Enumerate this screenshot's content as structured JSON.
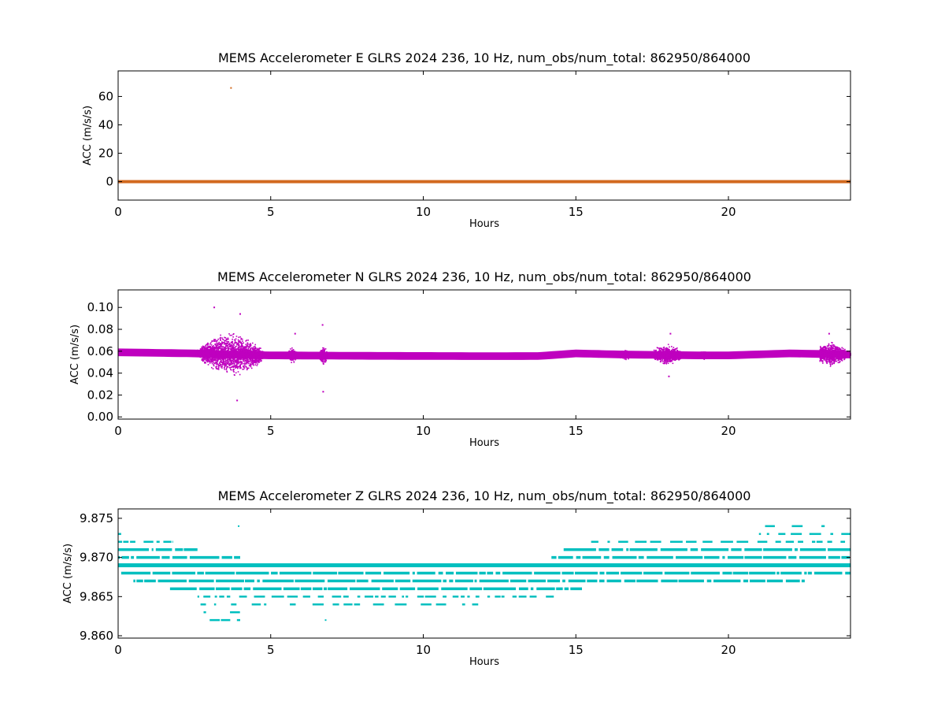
{
  "colors": {
    "E": "#d2691e",
    "N": "#bf00bf",
    "Z": "#00bfbf",
    "axes": "#000000",
    "background": "#ffffff"
  },
  "chart_data": [
    {
      "type": "scatter",
      "title": "MEMS Accelerometer E GLRS 2024 236, 10 Hz, num_obs/num_total: 862950/864000",
      "xlabel": "Hours",
      "ylabel": "ACC (m/s/s)",
      "xlim": [
        0,
        24
      ],
      "ylim": [
        -13,
        78
      ],
      "xticks": [
        0,
        5,
        10,
        15,
        20
      ],
      "xtick_labels": [
        "0",
        "5",
        "10",
        "15",
        "20"
      ],
      "yticks": [
        0,
        20,
        40,
        60
      ],
      "ytick_labels": [
        "0",
        "20",
        "40",
        "60"
      ],
      "grid": false,
      "series": [
        {
          "baseline": 0.0,
          "baseline_range": [
            0,
            24
          ],
          "band": 0.8,
          "outliers": [
            {
              "x": 3.7,
              "y": 66
            }
          ]
        }
      ]
    },
    {
      "type": "scatter",
      "title": "MEMS Accelerometer N GLRS 2024 236, 10 Hz, num_obs/num_total: 862950/864000",
      "xlabel": "Hours",
      "ylabel": "ACC (m/s/s)",
      "xlim": [
        0,
        24
      ],
      "ylim": [
        -0.002,
        0.116
      ],
      "xticks": [
        0,
        5,
        10,
        15,
        20
      ],
      "xtick_labels": [
        "0",
        "5",
        "10",
        "15",
        "20"
      ],
      "yticks": [
        0.0,
        0.02,
        0.04,
        0.06,
        0.08,
        0.1
      ],
      "ytick_labels": [
        "0.00",
        "0.02",
        "0.04",
        "0.06",
        "0.08",
        "0.10"
      ],
      "grid": false,
      "series": [
        {
          "baseline": [
            [
              0,
              0.059
            ],
            [
              2.5,
              0.058
            ],
            [
              3.5,
              0.057
            ],
            [
              5,
              0.0562
            ],
            [
              8,
              0.0558
            ],
            [
              12,
              0.0555
            ],
            [
              13.8,
              0.0556
            ],
            [
              15,
              0.058
            ],
            [
              16.5,
              0.057
            ],
            [
              19,
              0.0562
            ],
            [
              20,
              0.0562
            ],
            [
              22,
              0.058
            ],
            [
              24,
              0.057
            ]
          ],
          "band": 0.0035,
          "bursts": [
            {
              "start": 2.55,
              "end": 4.9,
              "amp": 0.022,
              "peak": 3.7
            },
            {
              "start": 5.5,
              "end": 5.9,
              "amp": 0.008,
              "peak": 5.7
            },
            {
              "start": 6.55,
              "end": 6.9,
              "amp": 0.009,
              "peak": 6.72
            },
            {
              "start": 16.3,
              "end": 16.9,
              "amp": 0.005,
              "peak": 16.6
            },
            {
              "start": 17.5,
              "end": 18.6,
              "amp": 0.01,
              "peak": 18.0
            },
            {
              "start": 19.0,
              "end": 19.5,
              "amp": 0.004,
              "peak": 19.2
            },
            {
              "start": 23.0,
              "end": 24.0,
              "amp": 0.012,
              "peak": 23.3
            }
          ],
          "outliers": [
            {
              "x": 3.15,
              "y": 0.1
            },
            {
              "x": 4.0,
              "y": 0.094
            },
            {
              "x": 3.9,
              "y": 0.015
            },
            {
              "x": 6.7,
              "y": 0.084
            },
            {
              "x": 6.72,
              "y": 0.023
            },
            {
              "x": 5.8,
              "y": 0.076
            },
            {
              "x": 18.1,
              "y": 0.076
            },
            {
              "x": 18.05,
              "y": 0.037
            },
            {
              "x": 23.3,
              "y": 0.076
            }
          ]
        }
      ]
    },
    {
      "type": "scatter",
      "title": "MEMS Accelerometer Z GLRS 2024 236, 10 Hz, num_obs/num_total: 862950/864000",
      "xlabel": "Hours",
      "ylabel": "ACC (m/s/s)",
      "xlim": [
        0,
        24
      ],
      "ylim": [
        9.8597,
        9.8762
      ],
      "xticks": [
        0,
        5,
        10,
        15,
        20
      ],
      "xtick_labels": [
        "0",
        "5",
        "10",
        "15",
        "20"
      ],
      "yticks": [
        9.86,
        9.865,
        9.87,
        9.875
      ],
      "ytick_labels": [
        "9.860",
        "9.865",
        "9.870",
        "9.875"
      ],
      "grid": false,
      "levels": [
        {
          "y": 9.874,
          "segments": [
            [
              21.2,
              23.3
            ]
          ],
          "density": "sparse"
        },
        {
          "y": 9.873,
          "segments": [
            [
              0,
              0.1
            ],
            [
              21.0,
              24
            ]
          ],
          "density": "medium"
        },
        {
          "y": 9.872,
          "segments": [
            [
              0,
              1.8
            ],
            [
              15.5,
              24
            ]
          ],
          "density": "medium"
        },
        {
          "y": 9.871,
          "segments": [
            [
              0,
              2.6
            ],
            [
              14.6,
              24
            ]
          ],
          "density": "dense"
        },
        {
          "y": 9.87,
          "segments": [
            [
              0,
              4.0
            ],
            [
              14.2,
              24
            ]
          ],
          "density": "dense"
        },
        {
          "y": 9.869,
          "segments": [
            [
              0,
              24
            ]
          ],
          "density": "solid"
        },
        {
          "y": 9.868,
          "segments": [
            [
              0.1,
              24
            ]
          ],
          "density": "dense"
        },
        {
          "y": 9.867,
          "segments": [
            [
              0.5,
              22.5
            ]
          ],
          "density": "dense"
        },
        {
          "y": 9.866,
          "segments": [
            [
              1.7,
              15.2
            ]
          ],
          "density": "dense"
        },
        {
          "y": 9.865,
          "segments": [
            [
              2.6,
              14.3
            ]
          ],
          "density": "medium"
        },
        {
          "y": 9.864,
          "segments": [
            [
              2.7,
              11.8
            ]
          ],
          "density": "sparse"
        },
        {
          "y": 9.863,
          "segments": [
            [
              2.8,
              4.0
            ]
          ],
          "density": "sparse"
        },
        {
          "y": 9.862,
          "segments": [
            [
              3.0,
              4.0
            ]
          ],
          "density": "sparse"
        }
      ],
      "outliers": [
        {
          "x": 6.8,
          "y": 9.862
        },
        {
          "x": 3.95,
          "y": 9.874
        }
      ]
    }
  ]
}
